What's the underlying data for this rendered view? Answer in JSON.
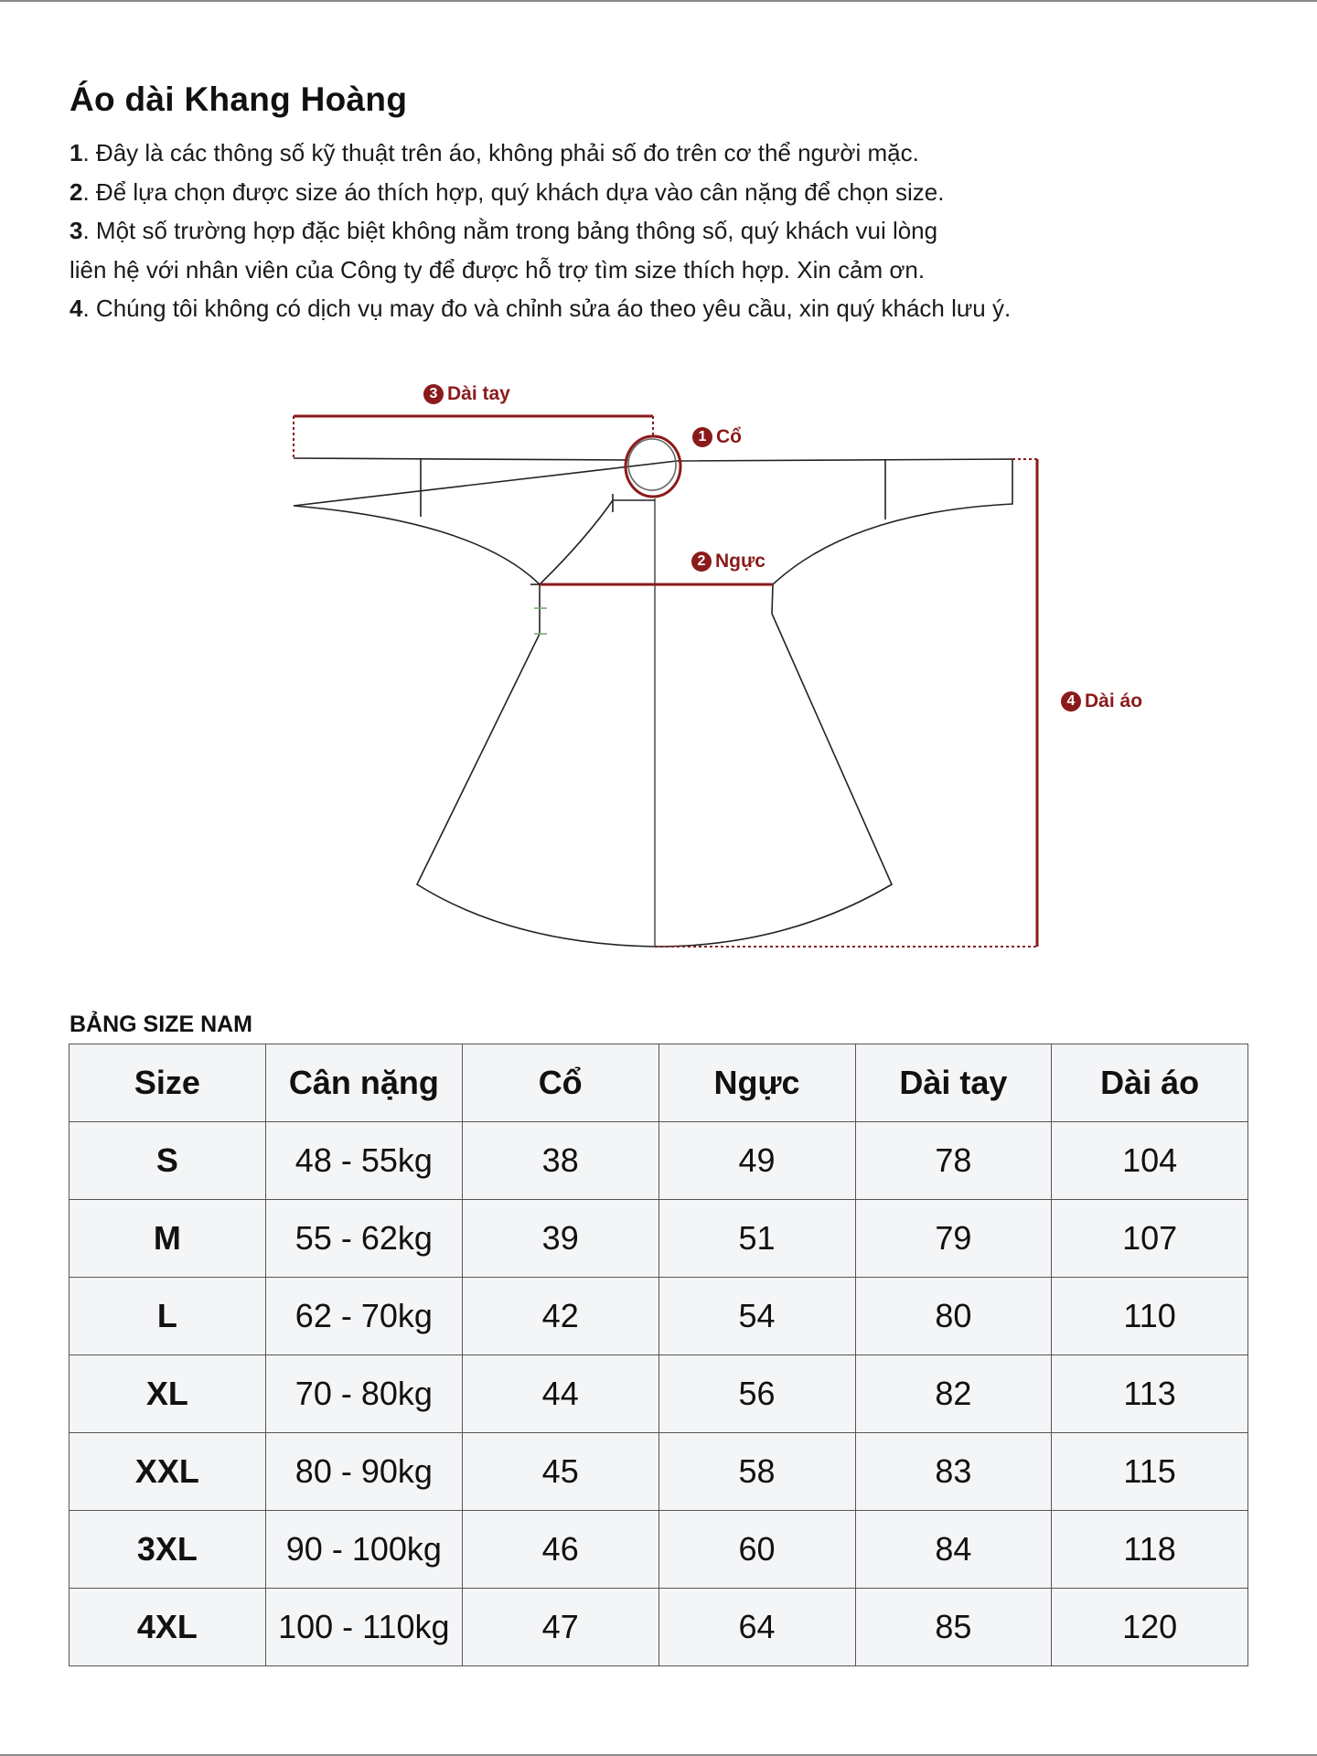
{
  "title": "Áo dài Khang Hoàng",
  "notes": [
    {
      "num": "1",
      "text": ". Đây là các thông số kỹ thuật trên áo, không phải số đo trên cơ thể người mặc."
    },
    {
      "num": "2",
      "text": ". Để lựa chọn được size áo thích hợp, quý khách dựa vào cân nặng để chọn size."
    },
    {
      "num": "3",
      "text": ". Một số trường hợp đặc biệt không nằm trong bảng thông số, quý khách vui lòng"
    },
    {
      "num": "",
      "text": "liên hệ với nhân viên của Công ty để được hỗ trợ tìm size thích hợp. Xin cảm ơn."
    },
    {
      "num": "4",
      "text": ". Chúng tôi không có dịch vụ may đo và chỉnh sửa áo theo yêu cầu, xin quý khách lưu ý."
    }
  ],
  "diagram": {
    "accent_color": "#8b1a1a",
    "labels": [
      {
        "num": "1",
        "text": "Cổ"
      },
      {
        "num": "2",
        "text": "Ngực"
      },
      {
        "num": "3",
        "text": "Dài tay"
      },
      {
        "num": "4",
        "text": "Dài áo"
      }
    ]
  },
  "table": {
    "title": "BẢNG SIZE NAM",
    "headers": [
      "Size",
      "Cân nặng",
      "Cổ",
      "Ngực",
      "Dài tay",
      "Dài áo"
    ],
    "rows": [
      [
        "S",
        "48 - 55kg",
        "38",
        "49",
        "78",
        "104"
      ],
      [
        "M",
        "55 - 62kg",
        "39",
        "51",
        "79",
        "107"
      ],
      [
        "L",
        "62 - 70kg",
        "42",
        "54",
        "80",
        "110"
      ],
      [
        "XL",
        "70 - 80kg",
        "44",
        "56",
        "82",
        "113"
      ],
      [
        "XXL",
        "80 - 90kg",
        "45",
        "58",
        "83",
        "115"
      ],
      [
        "3XL",
        "90 - 100kg",
        "46",
        "60",
        "84",
        "118"
      ],
      [
        "4XL",
        "100 - 110kg",
        "47",
        "64",
        "85",
        "120"
      ]
    ]
  }
}
